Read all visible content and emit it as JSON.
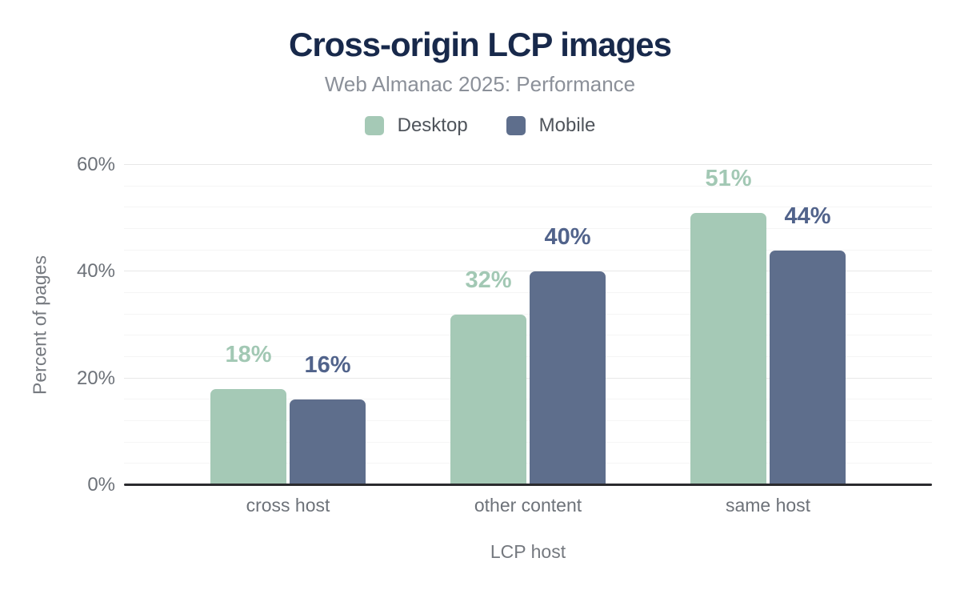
{
  "chart_data": {
    "type": "bar",
    "title": "Cross-origin LCP images",
    "subtitle": "Web Almanac 2025: Performance",
    "categories": [
      "cross host",
      "other content",
      "same host"
    ],
    "series": [
      {
        "name": "Desktop",
        "color": "#a5c9b6",
        "label_color": "#a2c8b4",
        "values": [
          18,
          32,
          51
        ],
        "labels": [
          "18%",
          "32%",
          "51%"
        ]
      },
      {
        "name": "Mobile",
        "color": "#5e6e8c",
        "label_color": "#51638b",
        "values": [
          16,
          40,
          44
        ],
        "labels": [
          "16%",
          "40%",
          "44%"
        ]
      }
    ],
    "xaxis": {
      "title": "LCP host"
    },
    "yaxis": {
      "title": "Percent of pages",
      "max": 60,
      "major_step": 20,
      "minor_step": 4,
      "tick_values": [
        0,
        20,
        40,
        60
      ],
      "ticks": [
        "0%",
        "20%",
        "40%",
        "60%"
      ]
    },
    "legend_position": "top",
    "grid": "horizontal",
    "axis_line_color": "#2b2b2e",
    "title_color": "#18294b",
    "subtitle_color": "#8b9099"
  }
}
